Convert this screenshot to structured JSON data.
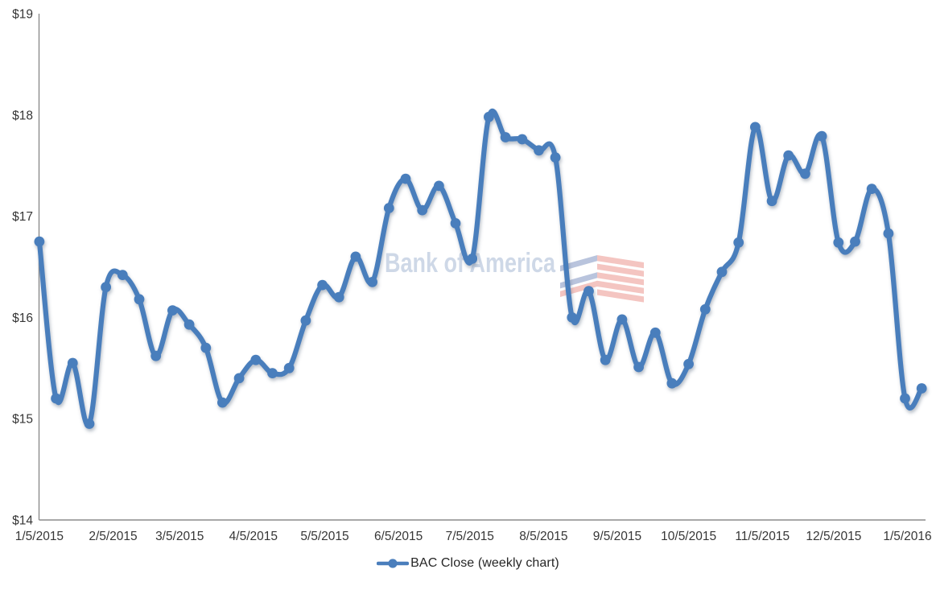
{
  "chart_data": {
    "type": "line",
    "title": "",
    "legend": "BAC Close (weekly chart)",
    "grid": "off",
    "legend_position": "bottom",
    "ylim": [
      14,
      19
    ],
    "y_ticks": [
      19,
      18,
      17,
      16,
      15,
      14
    ],
    "y_tick_labels": [
      "$19",
      "$18",
      "$17",
      "$16",
      "$15",
      "$14"
    ],
    "x_tick_labels": [
      "1/5/2015",
      "2/5/2015",
      "3/5/2015",
      "4/5/2015",
      "5/5/2015",
      "6/5/2015",
      "7/5/2015",
      "8/5/2015",
      "9/5/2015",
      "10/5/2015",
      "11/5/2015",
      "12/5/2015",
      "1/5/2016"
    ],
    "series": [
      {
        "name": "BAC Close",
        "frequency": "weekly",
        "x": [
          "1/5/2015",
          "1/12/2015",
          "1/19/2015",
          "1/26/2015",
          "2/2/2015",
          "2/9/2015",
          "2/16/2015",
          "2/23/2015",
          "3/2/2015",
          "3/9/2015",
          "3/16/2015",
          "3/23/2015",
          "3/30/2015",
          "4/6/2015",
          "4/13/2015",
          "4/20/2015",
          "4/27/2015",
          "5/4/2015",
          "5/11/2015",
          "5/18/2015",
          "5/25/2015",
          "6/1/2015",
          "6/8/2015",
          "6/15/2015",
          "6/22/2015",
          "6/29/2015",
          "7/6/2015",
          "7/13/2015",
          "7/20/2015",
          "7/27/2015",
          "8/3/2015",
          "8/10/2015",
          "8/17/2015",
          "8/24/2015",
          "8/31/2015",
          "9/7/2015",
          "9/14/2015",
          "9/21/2015",
          "9/28/2015",
          "10/5/2015",
          "10/12/2015",
          "10/19/2015",
          "10/26/2015",
          "11/2/2015",
          "11/9/2015",
          "11/16/2015",
          "11/23/2015",
          "11/30/2015",
          "12/7/2015",
          "12/14/2015",
          "12/21/2015",
          "12/28/2015",
          "1/4/2016",
          "1/11/2016"
        ],
        "values": [
          16.75,
          15.2,
          15.55,
          14.95,
          16.3,
          16.42,
          16.18,
          15.62,
          16.07,
          15.93,
          15.7,
          15.16,
          15.4,
          15.58,
          15.45,
          15.5,
          15.97,
          16.32,
          16.2,
          16.6,
          16.35,
          17.08,
          17.37,
          17.06,
          17.3,
          16.93,
          16.58,
          17.98,
          17.78,
          17.76,
          17.65,
          17.58,
          16.0,
          16.26,
          15.58,
          15.98,
          15.51,
          15.85,
          15.35,
          15.54,
          16.08,
          16.45,
          16.74,
          17.88,
          17.15,
          17.6,
          17.42,
          17.79,
          16.74,
          16.75,
          17.27,
          16.83,
          15.2,
          15.3
        ]
      }
    ],
    "colors": {
      "line": "#4a7ebc",
      "axis": "#8c8c8c",
      "tick_label": "#363636",
      "legend_text": "#262626",
      "watermark_text": "#ccd6e6",
      "watermark_red": "#f0b3ae",
      "watermark_blue": "#a3b2d2"
    },
    "watermark": {
      "text": "Bank of America",
      "logo": "bank-of-america-flagscape-icon"
    }
  }
}
